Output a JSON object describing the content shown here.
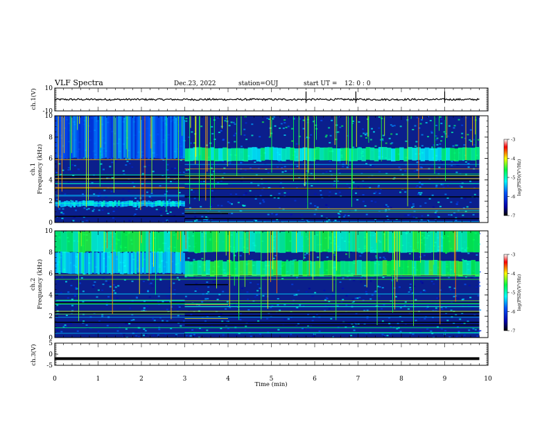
{
  "header": {
    "title": "VLF Spectra",
    "date": "Dec.23, 2022",
    "station": "station=OUJ",
    "start_label": "start  UT =",
    "start_time": "12: 0  : 0"
  },
  "chart_data": [
    {
      "type": "line",
      "panel": "ch1-waveform",
      "ylabel": "ch.1(V)",
      "ylim": [
        -10,
        10
      ],
      "y_ticks": [
        "10",
        "-10"
      ],
      "x": [
        0,
        1,
        2,
        3,
        4,
        5,
        6,
        7,
        8,
        9,
        9.8
      ],
      "values": [
        0,
        0,
        0,
        0,
        0,
        0,
        0,
        0,
        0,
        0,
        0
      ]
    },
    {
      "type": "heatmap",
      "panel": "ch1-spectrogram",
      "ylabel": "Frequency (kHz)",
      "channel_label": "ch.1",
      "ylim": [
        0,
        10
      ],
      "y_ticks": [
        "0",
        "2",
        "4",
        "6",
        "8",
        "10"
      ],
      "colorbar": {
        "label": "log(PSD)(V²/Hz)",
        "range": [
          -7,
          -3
        ],
        "ticks": [
          "-3",
          "-4",
          "-5",
          "-6",
          "-7"
        ]
      },
      "bands": [
        {
          "x": [
            0,
            3
          ],
          "y": [
            1.5,
            2.0
          ],
          "level": -5.3
        },
        {
          "x": [
            3,
            9.8
          ],
          "y": [
            5.8,
            7.0
          ],
          "level": -5.0
        },
        {
          "x": [
            0,
            3
          ],
          "y": [
            6.0,
            10.0
          ],
          "level": -5.8
        }
      ]
    },
    {
      "type": "heatmap",
      "panel": "ch2-spectrogram",
      "ylabel": "Frequency (kHz)",
      "channel_label": "ch.2",
      "ylim": [
        0,
        10
      ],
      "y_ticks": [
        "0",
        "2",
        "4",
        "6",
        "8",
        "10"
      ],
      "colorbar": {
        "label": "log(PSD)(V²/Hz)",
        "range": [
          -7,
          -3
        ],
        "ticks": [
          "-3",
          "-4",
          "-5",
          "-6",
          "-7"
        ]
      },
      "bands": [
        {
          "x": [
            0,
            9.8
          ],
          "y": [
            8.0,
            10.0
          ],
          "level": -4.8
        },
        {
          "x": [
            3,
            9.8
          ],
          "y": [
            5.8,
            7.2
          ],
          "level": -4.7
        },
        {
          "x": [
            0,
            3
          ],
          "y": [
            6.0,
            8.0
          ],
          "level": -5.3
        }
      ]
    },
    {
      "type": "line",
      "panel": "ch3-waveform",
      "ylabel": "ch.3(V)",
      "ylim": [
        -5,
        5
      ],
      "y_ticks": [
        "5",
        "0",
        "-5"
      ],
      "x": [
        0,
        9.8
      ],
      "values": [
        -2,
        -2
      ]
    }
  ],
  "x_axis": {
    "label": "Time (min)",
    "ticks": [
      "0",
      "1",
      "2",
      "3",
      "4",
      "5",
      "6",
      "7",
      "8",
      "9",
      "10"
    ],
    "xlim": [
      0,
      10
    ],
    "data_end": 9.8
  },
  "colors": {
    "spectrogram_background": "#0b1f8c",
    "waveform": "#000000",
    "colormap": [
      "#000000",
      "#0000aa",
      "#0055ff",
      "#00ffff",
      "#00ff44",
      "#ffff00",
      "#ff0000",
      "#ffffff"
    ]
  }
}
